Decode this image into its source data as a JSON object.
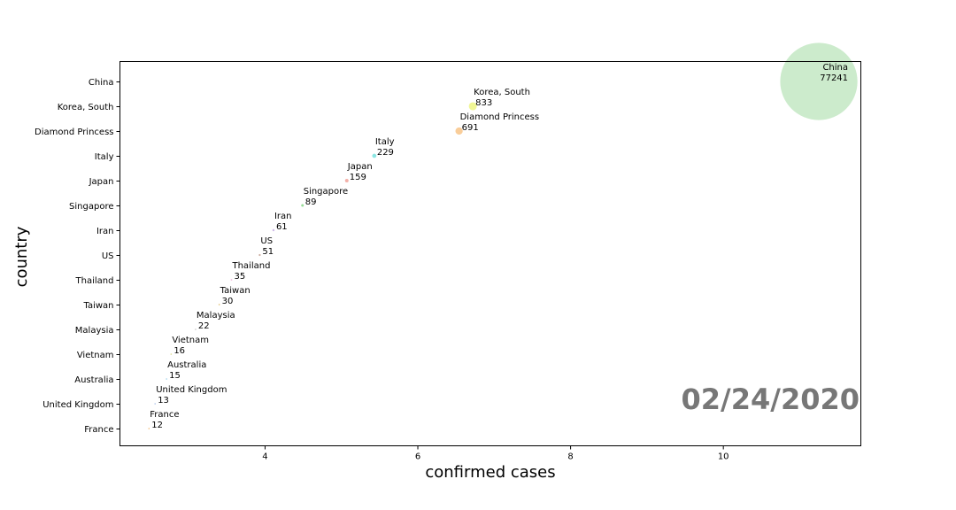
{
  "chart_data": {
    "type": "scatter",
    "xlabel": "confirmed cases",
    "ylabel": "country",
    "xlim": [
      2.1,
      11.8
    ],
    "xticks": [
      4,
      6,
      8,
      10
    ],
    "grid": false,
    "date_label": "02/24/2020",
    "points": [
      {
        "country": "China",
        "cases": 77241,
        "x": 11.25,
        "color": "#c6e9c7"
      },
      {
        "country": "Korea, South",
        "cases": 833,
        "x": 6.72,
        "color": "#eef58a"
      },
      {
        "country": "Diamond Princess",
        "cases": 691,
        "x": 6.54,
        "color": "#f8c88e"
      },
      {
        "country": "Italy",
        "cases": 229,
        "x": 5.43,
        "color": "#7fe3e0"
      },
      {
        "country": "Japan",
        "cases": 159,
        "x": 5.07,
        "color": "#f2a9a0"
      },
      {
        "country": "Singapore",
        "cases": 89,
        "x": 4.49,
        "color": "#8ed98e"
      },
      {
        "country": "Iran",
        "cases": 61,
        "x": 4.11,
        "color": "#c9b3e6"
      },
      {
        "country": "US",
        "cases": 51,
        "x": 3.93,
        "color": "#c8a79a"
      },
      {
        "country": "Thailand",
        "cases": 35,
        "x": 3.56,
        "color": "#f3b6d9"
      },
      {
        "country": "Taiwan",
        "cases": 30,
        "x": 3.4,
        "color": "#e0c070"
      },
      {
        "country": "Malaysia",
        "cases": 22,
        "x": 3.09,
        "color": "#bfbfbf"
      },
      {
        "country": "Vietnam",
        "cases": 16,
        "x": 2.77,
        "color": "#d6d67a"
      },
      {
        "country": "Australia",
        "cases": 15,
        "x": 2.71,
        "color": "#8fcbe8"
      },
      {
        "country": "United Kingdom",
        "cases": 13,
        "x": 2.56,
        "color": "#9fb8e6"
      },
      {
        "country": "France",
        "cases": 12,
        "x": 2.48,
        "color": "#f0b060"
      }
    ]
  }
}
